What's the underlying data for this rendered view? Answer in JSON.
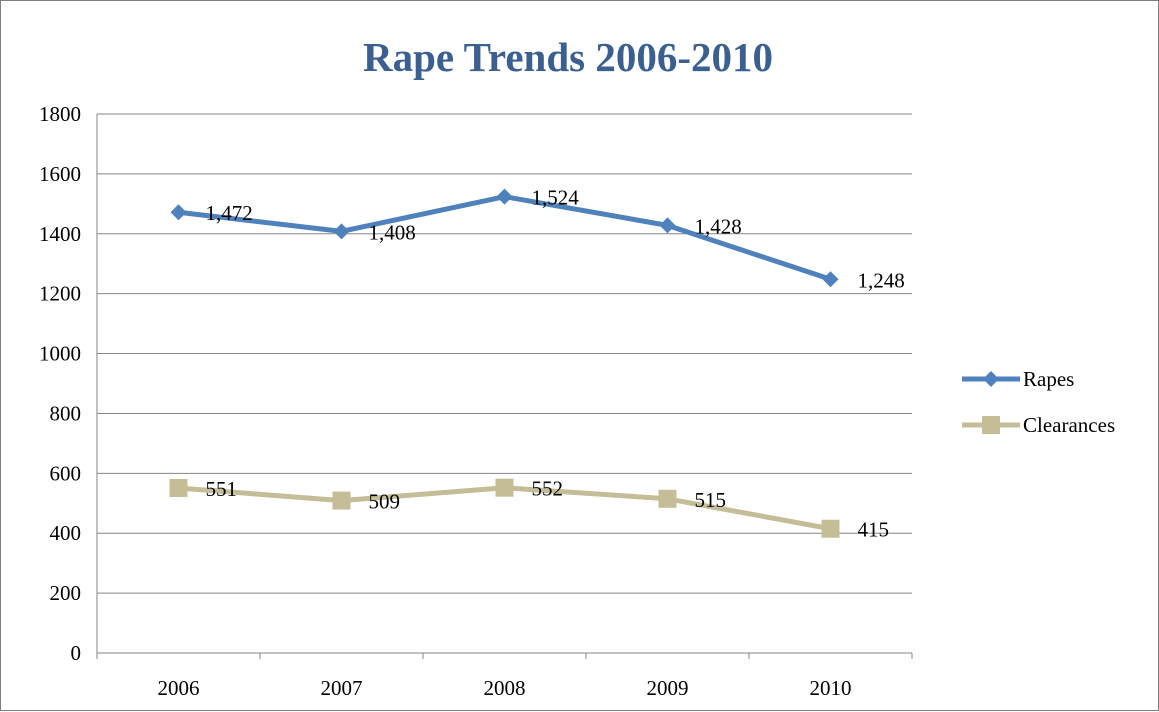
{
  "chart_data": {
    "type": "line",
    "title": "Rape Trends 2006-2010",
    "categories": [
      "2006",
      "2007",
      "2008",
      "2009",
      "2010"
    ],
    "ylim": [
      0,
      1800
    ],
    "yticks": [
      0,
      200,
      400,
      600,
      800,
      1000,
      1200,
      1400,
      1600,
      1800
    ],
    "ytick_labels": [
      "0",
      "200",
      "400",
      "600",
      "800",
      "1000",
      "1200",
      "1400",
      "1600",
      "1800"
    ],
    "grid": true,
    "legend_position": "right",
    "series": [
      {
        "name": "Rapes",
        "values": [
          1472,
          1408,
          1524,
          1428,
          1248
        ],
        "labels": [
          "1,472",
          "1,408",
          "1,524",
          "1,428",
          "1,248"
        ],
        "color": "#4f81bd",
        "marker": "diamond"
      },
      {
        "name": "Clearances",
        "values": [
          551,
          509,
          552,
          515,
          415
        ],
        "labels": [
          "551",
          "509",
          "552",
          "515",
          "415"
        ],
        "color": "#c4bd97",
        "marker": "square"
      }
    ]
  }
}
